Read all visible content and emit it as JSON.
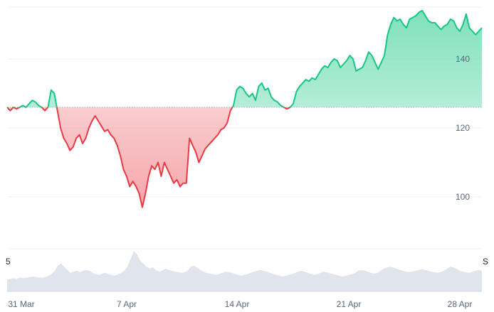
{
  "chart_data": {
    "type": "area",
    "baseline": 126,
    "ylim": [
      85,
      155
    ],
    "yticks": [
      100,
      120,
      140
    ],
    "xticks": [
      "31 Mar",
      "7 Apr",
      "14 Apr",
      "21 Apr",
      "28 Apr"
    ],
    "x_start_label": "5",
    "x_end_label": "S",
    "grid": true,
    "colors": {
      "above": "#16c784",
      "below": "#ea3943",
      "volume": "#cfd6e4",
      "grid": "#eff2f5"
    },
    "series": [
      {
        "values": [
          126,
          125,
          126,
          125.5,
          126,
          126.5,
          126,
          127,
          128,
          127.5,
          126.5,
          126,
          125,
          126,
          131,
          130,
          125,
          120,
          117,
          115.5,
          113.5,
          114.5,
          117,
          118,
          115.5,
          117,
          120,
          122,
          123.5,
          122,
          120.5,
          119,
          119.5,
          118,
          117,
          115,
          112,
          108,
          106,
          103,
          104.5,
          103,
          101,
          97,
          101,
          106,
          109,
          108,
          110,
          106,
          110,
          108,
          106,
          104,
          105,
          103,
          104,
          104,
          117,
          115,
          113,
          110,
          112,
          114,
          115,
          116,
          117,
          118,
          119.5,
          120,
          121.5,
          125,
          126.5,
          131,
          132,
          131.5,
          130,
          129,
          130,
          128,
          132,
          133,
          131,
          131.5,
          129,
          128,
          127.5,
          126.5,
          126,
          125.5,
          126,
          127,
          130.5,
          132,
          133,
          134,
          133.5,
          134.5,
          134,
          135.5,
          137,
          138,
          137.5,
          139,
          140,
          139.5,
          137.5,
          138.5,
          139.5,
          141,
          140,
          136.5,
          137,
          137.5,
          139.5,
          142,
          141,
          139,
          137,
          139,
          141,
          147,
          150,
          152,
          151,
          151.5,
          150,
          149,
          151.5,
          152,
          152.5,
          153.5,
          154,
          152.5,
          151,
          150.5,
          150.5,
          149.5,
          148.5,
          149.5,
          150,
          151.5,
          151,
          149,
          148,
          150,
          153,
          149,
          148,
          147,
          148,
          149
        ]
      }
    ],
    "volume": [
      0.28,
      0.3,
      0.32,
      0.3,
      0.34,
      0.32,
      0.33,
      0.35,
      0.36,
      0.35,
      0.34,
      0.33,
      0.34,
      0.38,
      0.42,
      0.5,
      0.62,
      0.68,
      0.6,
      0.52,
      0.45,
      0.48,
      0.5,
      0.47,
      0.5,
      0.52,
      0.5,
      0.45,
      0.42,
      0.4,
      0.43,
      0.45,
      0.42,
      0.4,
      0.38,
      0.41,
      0.45,
      0.5,
      0.6,
      0.78,
      0.98,
      0.9,
      0.75,
      0.68,
      0.6,
      0.55,
      0.58,
      0.52,
      0.48,
      0.5,
      0.55,
      0.52,
      0.5,
      0.48,
      0.47,
      0.45,
      0.46,
      0.5,
      0.6,
      0.62,
      0.58,
      0.52,
      0.48,
      0.45,
      0.43,
      0.42,
      0.4,
      0.42,
      0.45,
      0.48,
      0.47,
      0.45,
      0.42,
      0.4,
      0.38,
      0.4,
      0.42,
      0.45,
      0.48,
      0.5,
      0.52,
      0.5,
      0.48,
      0.45,
      0.42,
      0.4,
      0.38,
      0.36,
      0.38,
      0.4,
      0.42,
      0.45,
      0.48,
      0.5,
      0.48,
      0.45,
      0.42,
      0.4,
      0.42,
      0.45,
      0.48,
      0.46,
      0.44,
      0.42,
      0.4,
      0.38,
      0.36,
      0.38,
      0.4,
      0.42,
      0.45,
      0.5,
      0.52,
      0.5,
      0.48,
      0.45,
      0.43,
      0.45,
      0.5,
      0.55,
      0.58,
      0.6,
      0.58,
      0.55,
      0.52,
      0.5,
      0.48,
      0.47,
      0.48,
      0.5,
      0.52,
      0.54,
      0.52,
      0.5,
      0.48,
      0.46,
      0.45,
      0.47,
      0.5,
      0.55,
      0.6,
      0.58,
      0.55,
      0.5,
      0.48,
      0.46,
      0.45,
      0.47,
      0.5,
      0.52,
      0.5
    ]
  }
}
